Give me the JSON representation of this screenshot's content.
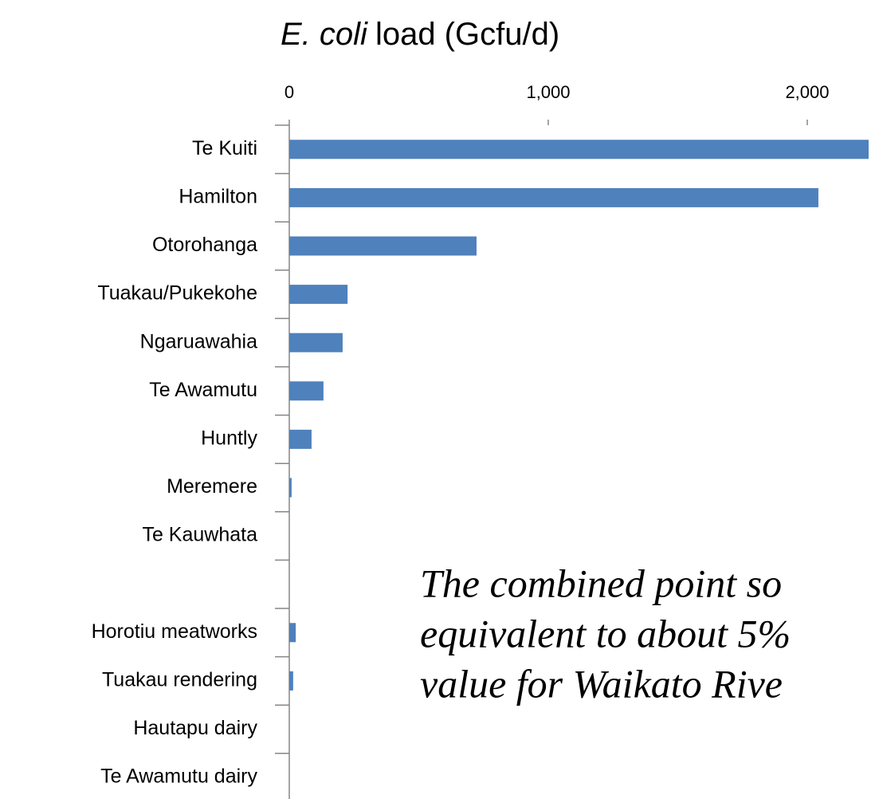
{
  "chart_data": {
    "type": "hbar",
    "title_species": "E. coli",
    "title": "load (Gcfu/d)",
    "categories": [
      "Te Kuiti",
      "Hamilton",
      "Otorohanga",
      "Tuakau/Pukekohe",
      "Ngaruawahia",
      "Te Awamutu",
      "Huntly",
      "Meremere",
      "Te Kauwhata",
      null,
      "Horotiu meatworks",
      "Tuakau rendering",
      "Hautapu dairy",
      "Te Awamutu dairy"
    ],
    "values": [
      2237,
      2043,
      723,
      225,
      206,
      132,
      86,
      9,
      0,
      null,
      25,
      15,
      0,
      0
    ],
    "color": "#4f81bd",
    "xlim": [
      0,
      2277
    ],
    "xticks": [
      0,
      {
        "value": 1000,
        "label": "1,000"
      },
      {
        "value": 2000,
        "label": "2,000"
      }
    ],
    "annotation": [
      "The combined point so",
      "equivalent to about 5%",
      "value for Waikato Rive"
    ]
  }
}
